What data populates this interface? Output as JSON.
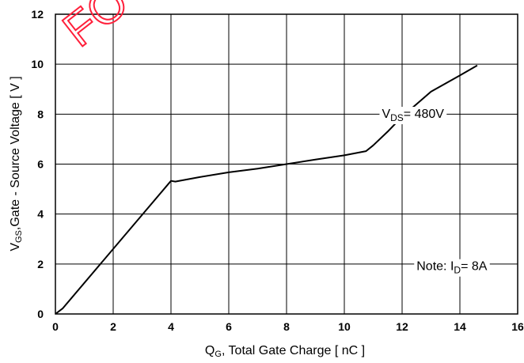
{
  "watermark": {
    "text": "FO",
    "color": "#ff1f3a"
  },
  "chart_data": {
    "type": "line",
    "xlabel": {
      "pre": "Q",
      "sub": "G",
      "post": ", Total Gate Charge [ nC ]"
    },
    "ylabel": {
      "pre": "V",
      "sub": "GS",
      "post": ",Gate - Source Voltage [ V ]"
    },
    "xlim": [
      0,
      16
    ],
    "ylim": [
      0,
      12
    ],
    "xticks": [
      0,
      2,
      4,
      6,
      8,
      10,
      12,
      14,
      16
    ],
    "yticks": [
      0,
      2,
      4,
      6,
      8,
      10,
      12
    ],
    "grid": true,
    "series": [
      {
        "x": [
          0,
          0.25,
          4.0,
          4.15,
          5.0,
          6.0,
          7.0,
          8.0,
          9.0,
          10.0,
          10.75,
          11.0,
          11.5,
          12.0,
          13.0,
          14.0,
          14.6
        ],
        "y": [
          0,
          0.22,
          5.33,
          5.3,
          5.48,
          5.67,
          5.82,
          6.0,
          6.18,
          6.35,
          6.52,
          6.75,
          7.3,
          7.9,
          8.9,
          9.55,
          9.95
        ],
        "color": "#000000"
      }
    ],
    "annotations": [
      {
        "pre": "V",
        "sub": "DS",
        "post": "= 480V",
        "x": 11.3,
        "y": 7.85
      },
      {
        "pre": "Note: I",
        "sub": "D",
        "post": "= 8A",
        "x": 12.5,
        "y": 1.75
      }
    ]
  }
}
